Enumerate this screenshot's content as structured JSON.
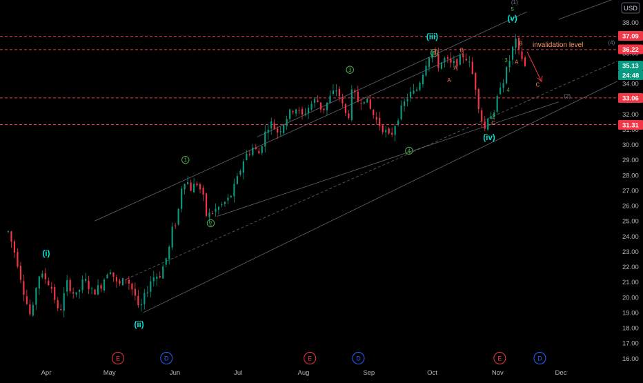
{
  "chart_data": {
    "type": "candlestick",
    "currency_label": "USD",
    "y_axis": {
      "ticks": [
        16,
        17,
        18,
        19,
        20,
        21,
        22,
        23,
        24,
        25,
        26,
        27,
        28,
        29,
        30,
        31,
        32,
        33,
        34,
        35,
        36,
        37,
        38
      ],
      "tick_labels": [
        "16.00",
        "17.00",
        "18.00",
        "19.00",
        "20.00",
        "21.00",
        "22.00",
        "23.00",
        "24.00",
        "25.00",
        "26.00",
        "27.00",
        "28.00",
        "29.00",
        "30.00",
        "31.00",
        "32.00",
        "33.00",
        "34.00",
        "35.00",
        "36.00",
        "37.00",
        "38.00"
      ],
      "range": [
        15.45,
        39.0
      ]
    },
    "x_axis": {
      "labels": [
        "Apr",
        "May",
        "Jun",
        "Jul",
        "Aug",
        "Sep",
        "Oct",
        "Nov",
        "Dec"
      ],
      "label_days": [
        62,
        92,
        123,
        153,
        184,
        215,
        245,
        276,
        306
      ],
      "range_days": [
        44,
        348
      ]
    },
    "price_lines": [
      {
        "value": 37.09,
        "label": "37.09",
        "color": "#f23645"
      },
      {
        "value": 36.22,
        "label": "36.22",
        "color": "#f23645"
      },
      {
        "value": 33.06,
        "label": "33.06",
        "color": "#f23645"
      },
      {
        "value": 31.31,
        "label": "31.31",
        "color": "#f23645"
      }
    ],
    "price_tags": [
      {
        "label": "35.13",
        "value": 35.13,
        "color": "#089981"
      },
      {
        "label": "24:48",
        "value": 34.6,
        "color": "#089981"
      }
    ],
    "candle_path": [
      [
        44,
        24.3
      ],
      [
        48,
        22.5
      ],
      [
        52,
        20.0
      ],
      [
        55,
        18.5
      ],
      [
        58,
        21.5
      ],
      [
        62,
        21.2
      ],
      [
        65,
        20.5
      ],
      [
        68,
        18.8
      ],
      [
        72,
        21.0
      ],
      [
        76,
        20.0
      ],
      [
        80,
        21.2
      ],
      [
        84,
        20.3
      ],
      [
        88,
        20.8
      ],
      [
        92,
        22.0
      ],
      [
        96,
        20.7
      ],
      [
        100,
        21.3
      ],
      [
        104,
        20.2
      ],
      [
        106,
        19.0
      ],
      [
        108,
        19.8
      ],
      [
        112,
        21.3
      ],
      [
        116,
        21.5
      ],
      [
        120,
        23.0
      ],
      [
        122,
        24.6
      ],
      [
        124,
        25.0
      ],
      [
        126,
        27.2
      ],
      [
        128,
        27.8
      ],
      [
        131,
        27.0
      ],
      [
        133,
        27.6
      ],
      [
        136,
        26.8
      ],
      [
        138,
        25.3
      ],
      [
        141,
        25.6
      ],
      [
        145,
        26.0
      ],
      [
        149,
        26.5
      ],
      [
        152,
        27.5
      ],
      [
        156,
        29.2
      ],
      [
        160,
        29.8
      ],
      [
        163,
        29.4
      ],
      [
        165,
        30.5
      ],
      [
        168,
        31.5
      ],
      [
        172,
        30.8
      ],
      [
        176,
        31.8
      ],
      [
        180,
        32.5
      ],
      [
        183,
        31.8
      ],
      [
        186,
        32.4
      ],
      [
        190,
        33.0
      ],
      [
        193,
        32.2
      ],
      [
        197,
        33.2
      ],
      [
        200,
        33.7
      ],
      [
        202,
        32.7
      ],
      [
        205,
        31.6
      ],
      [
        207,
        33.5
      ],
      [
        210,
        32.8
      ],
      [
        213,
        33.1
      ],
      [
        216,
        32.2
      ],
      [
        219,
        31.5
      ],
      [
        222,
        31.0
      ],
      [
        225,
        30.4
      ],
      [
        228,
        31.6
      ],
      [
        231,
        32.5
      ],
      [
        234,
        33.3
      ],
      [
        237,
        33.4
      ],
      [
        240,
        34.5
      ],
      [
        243,
        35.8
      ],
      [
        245,
        36.1
      ],
      [
        248,
        35.2
      ],
      [
        251,
        35.6
      ],
      [
        254,
        35.2
      ],
      [
        257,
        35.4
      ],
      [
        260,
        35.9
      ],
      [
        262,
        35.5
      ],
      [
        265,
        34.2
      ],
      [
        268,
        31.8
      ],
      [
        270,
        31.0
      ],
      [
        272,
        32.3
      ],
      [
        274,
        31.6
      ],
      [
        277,
        33.9
      ],
      [
        279,
        34.3
      ],
      [
        281,
        35.2
      ],
      [
        283,
        36.2
      ],
      [
        284,
        37.0
      ],
      [
        286,
        36.0
      ],
      [
        288,
        35.6
      ],
      [
        289,
        35.1
      ]
    ],
    "series": [
      {
        "name": "",
        "type": "candles",
        "up_color": "#089981",
        "down_color": "#f23645",
        "count": 168,
        "day_range": [
          44,
          289
        ]
      }
    ],
    "wave_labels": {
      "cyan": [
        {
          "text": "(i)",
          "day": 62,
          "price": 22.7
        },
        {
          "text": "(ii)",
          "day": 106,
          "price": 18.05
        },
        {
          "text": "(iii)",
          "day": 245,
          "price": 36.9
        },
        {
          "text": "(iv)",
          "day": 272,
          "price": 30.3
        },
        {
          "text": "(v)",
          "day": 283,
          "price": 38.1
        }
      ],
      "green_circled": [
        {
          "text": "1",
          "day": 128,
          "price": 29.0
        },
        {
          "text": "2",
          "day": 140,
          "price": 24.85
        },
        {
          "text": "3",
          "day": 206,
          "price": 34.9
        },
        {
          "text": "4",
          "day": 234,
          "price": 29.6
        },
        {
          "text": "5",
          "day": 246,
          "price": 36.0
        }
      ],
      "green_small": [
        {
          "text": "3",
          "day": 280,
          "price": 35.4
        },
        {
          "text": "4",
          "day": 281,
          "price": 33.45
        },
        {
          "text": "5",
          "day": 283,
          "price": 38.75
        },
        {
          "text": "2",
          "day": 274,
          "price": 31.7
        }
      ],
      "orange": [
        {
          "text": "B",
          "day": 259,
          "price": 36.05
        },
        {
          "text": "A",
          "day": 253,
          "price": 34.1
        },
        {
          "text": "A",
          "day": 256,
          "price": 34.9
        },
        {
          "text": "C",
          "day": 274,
          "price": 31.3
        },
        {
          "text": "B",
          "day": 287,
          "price": 36.5
        },
        {
          "text": "A",
          "day": 285,
          "price": 35.3
        },
        {
          "text": "C",
          "day": 295,
          "price": 33.8
        }
      ],
      "gray": [
        {
          "text": "(1)",
          "day": 284,
          "price": 39.2
        },
        {
          "text": "(3)",
          "day": 316,
          "price": 39.6
        },
        {
          "text": "(4)",
          "day": 330,
          "price": 36.55
        },
        {
          "text": "(2)",
          "day": 309,
          "price": 33.05
        }
      ]
    },
    "annotation": {
      "text": "invalidation level",
      "color": "#ff9d6c"
    },
    "events": [
      {
        "type": "E",
        "day": 96,
        "color": "#f23645"
      },
      {
        "type": "D",
        "day": 119,
        "color": "#2962ff"
      },
      {
        "type": "E",
        "day": 187,
        "color": "#f23645"
      },
      {
        "type": "D",
        "day": 210,
        "color": "#2962ff"
      },
      {
        "type": "E",
        "day": 277,
        "color": "#f23645"
      },
      {
        "type": "D",
        "day": 296,
        "color": "#2962ff"
      }
    ],
    "channels": [
      {
        "style": "solid",
        "from": [
          108,
          19.0
        ],
        "to": [
          338,
          34.5
        ]
      },
      {
        "style": "dashed",
        "from": [
          100,
          21.2
        ],
        "to": [
          348,
          36.4
        ]
      },
      {
        "style": "solid",
        "from": [
          143,
          25.3
        ],
        "to": [
          305,
          32.8
        ]
      },
      {
        "style": "solid",
        "from": [
          85,
          25.0
        ],
        "to": [
          260,
          36.0
        ]
      },
      {
        "style": "solid",
        "from": [
          162,
          30.5
        ],
        "to": [
          290,
          38.7
        ]
      },
      {
        "style": "solid",
        "from": [
          305,
          38.2
        ],
        "to": [
          348,
          40.4
        ]
      }
    ],
    "grid": false,
    "legend": "none"
  }
}
